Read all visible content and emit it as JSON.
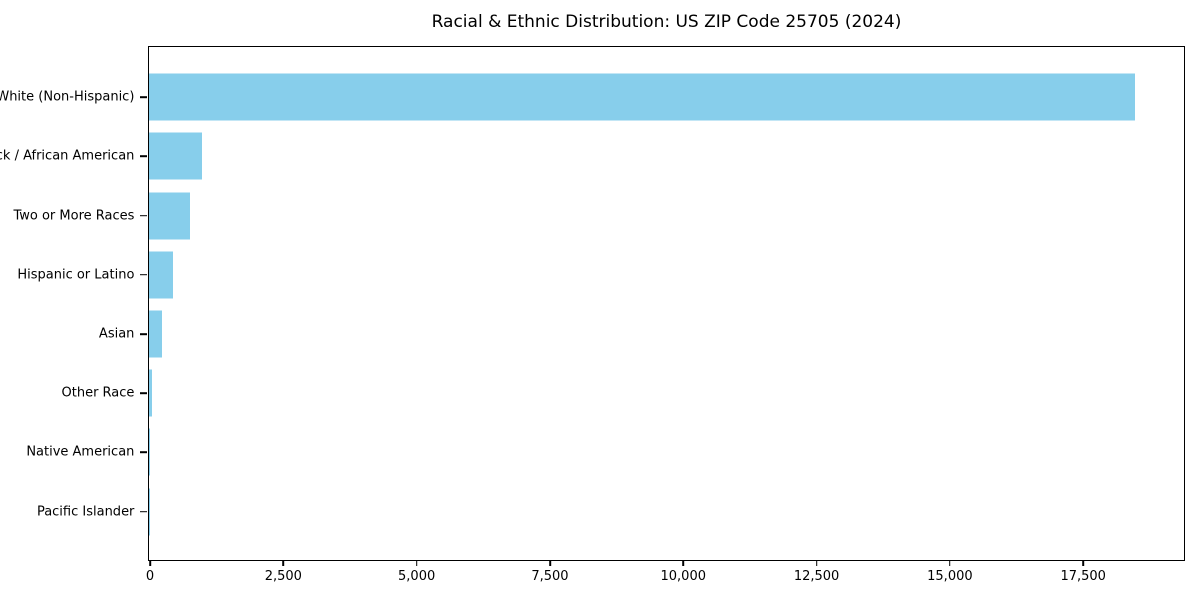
{
  "title": "Racial & Ethnic Distribution: US ZIP Code 25705 (2024)",
  "chart_data": {
    "type": "bar",
    "orientation": "horizontal",
    "title": "Racial & Ethnic Distribution: US ZIP Code 25705 (2024)",
    "categories": [
      "White (Non-Hispanic)",
      "Black / African American",
      "Two or More Races",
      "Hispanic or Latino",
      "Asian",
      "Other Race",
      "Native American",
      "Pacific Islander"
    ],
    "values": [
      18470,
      1000,
      770,
      450,
      250,
      55,
      15,
      5
    ],
    "bar_color": "#87CEEB",
    "xlabel": "",
    "ylabel": "",
    "xlim": [
      0,
      19390
    ],
    "x_ticks": [
      0,
      2500,
      5000,
      7500,
      10000,
      12500,
      15000,
      17500
    ],
    "x_tick_labels": [
      "0",
      "2,500",
      "5,000",
      "7,500",
      "10,000",
      "12,500",
      "15,000",
      "17,500"
    ],
    "grid": false,
    "legend": false,
    "frame": "full-box",
    "background_color": "#ffffff",
    "text_color": "#000000"
  }
}
